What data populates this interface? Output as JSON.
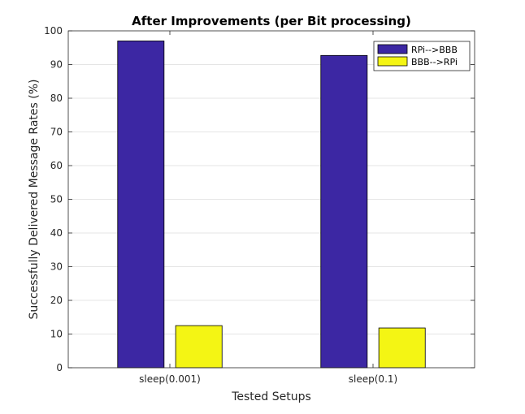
{
  "chart_data": {
    "type": "bar",
    "title": "After Improvements (per Bit processing)",
    "xlabel": "Tested Setups",
    "ylabel": "Successfully Delivered Message Rates (%)",
    "categories": [
      "sleep(0.001)",
      "sleep(0.1)"
    ],
    "series": [
      {
        "name": "RPi-->BBB",
        "values": [
          97,
          92.7
        ],
        "color": "#3c27a3"
      },
      {
        "name": "BBB-->RPi",
        "values": [
          12.5,
          11.8
        ],
        "color": "#f4f514"
      }
    ],
    "ylim": [
      0,
      100
    ],
    "yticks": [
      0,
      10,
      20,
      30,
      40,
      50,
      60,
      70,
      80,
      90,
      100
    ],
    "grid": "horizontal",
    "legend_position": "top-right"
  }
}
